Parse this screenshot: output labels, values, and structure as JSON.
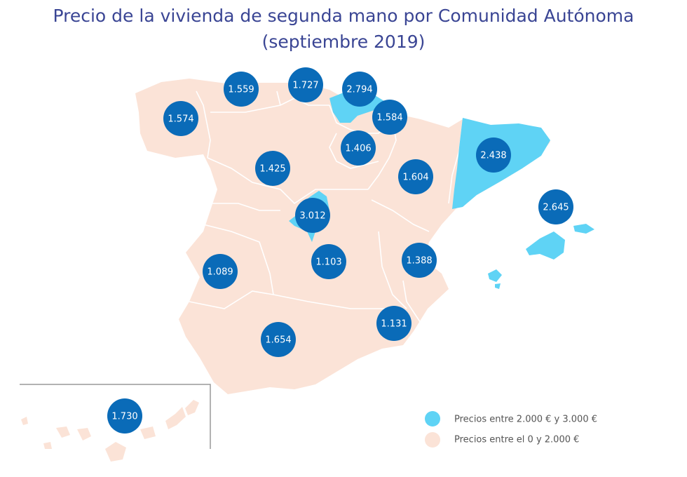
{
  "title": {
    "line1": "Precio de la vivienda de segunda mano por Comunidad Autónoma",
    "line2": "(septiembre 2019)"
  },
  "colors": {
    "high_region": "#5fd3f5",
    "low_region": "#fbe3d7",
    "bubble": "#0a6bb8",
    "border": "#ffffff",
    "title": "#3a4594"
  },
  "bubbles": [
    {
      "region": "galicia",
      "value": "1.574"
    },
    {
      "region": "asturias",
      "value": "1.559"
    },
    {
      "region": "cantabria",
      "value": "1.727"
    },
    {
      "region": "pais-vasco",
      "value": "2.794"
    },
    {
      "region": "navarra",
      "value": "1.584"
    },
    {
      "region": "la-rioja",
      "value": "1.406"
    },
    {
      "region": "castilla-y-leon",
      "value": "1.425"
    },
    {
      "region": "aragon",
      "value": "1.604"
    },
    {
      "region": "cataluna",
      "value": "2.438"
    },
    {
      "region": "baleares",
      "value": "2.645"
    },
    {
      "region": "madrid",
      "value": "3.012"
    },
    {
      "region": "extremadura",
      "value": "1.089"
    },
    {
      "region": "castilla-la-mancha",
      "value": "1.103"
    },
    {
      "region": "comunidad-valenciana",
      "value": "1.388"
    },
    {
      "region": "murcia",
      "value": "1.131"
    },
    {
      "region": "andalucia",
      "value": "1.654"
    },
    {
      "region": "canarias",
      "value": "1.730"
    }
  ],
  "legend": {
    "high": "Precios entre 2.000 € y 3.000 €",
    "low": "Precios entre el 0 y 2.000 €"
  }
}
